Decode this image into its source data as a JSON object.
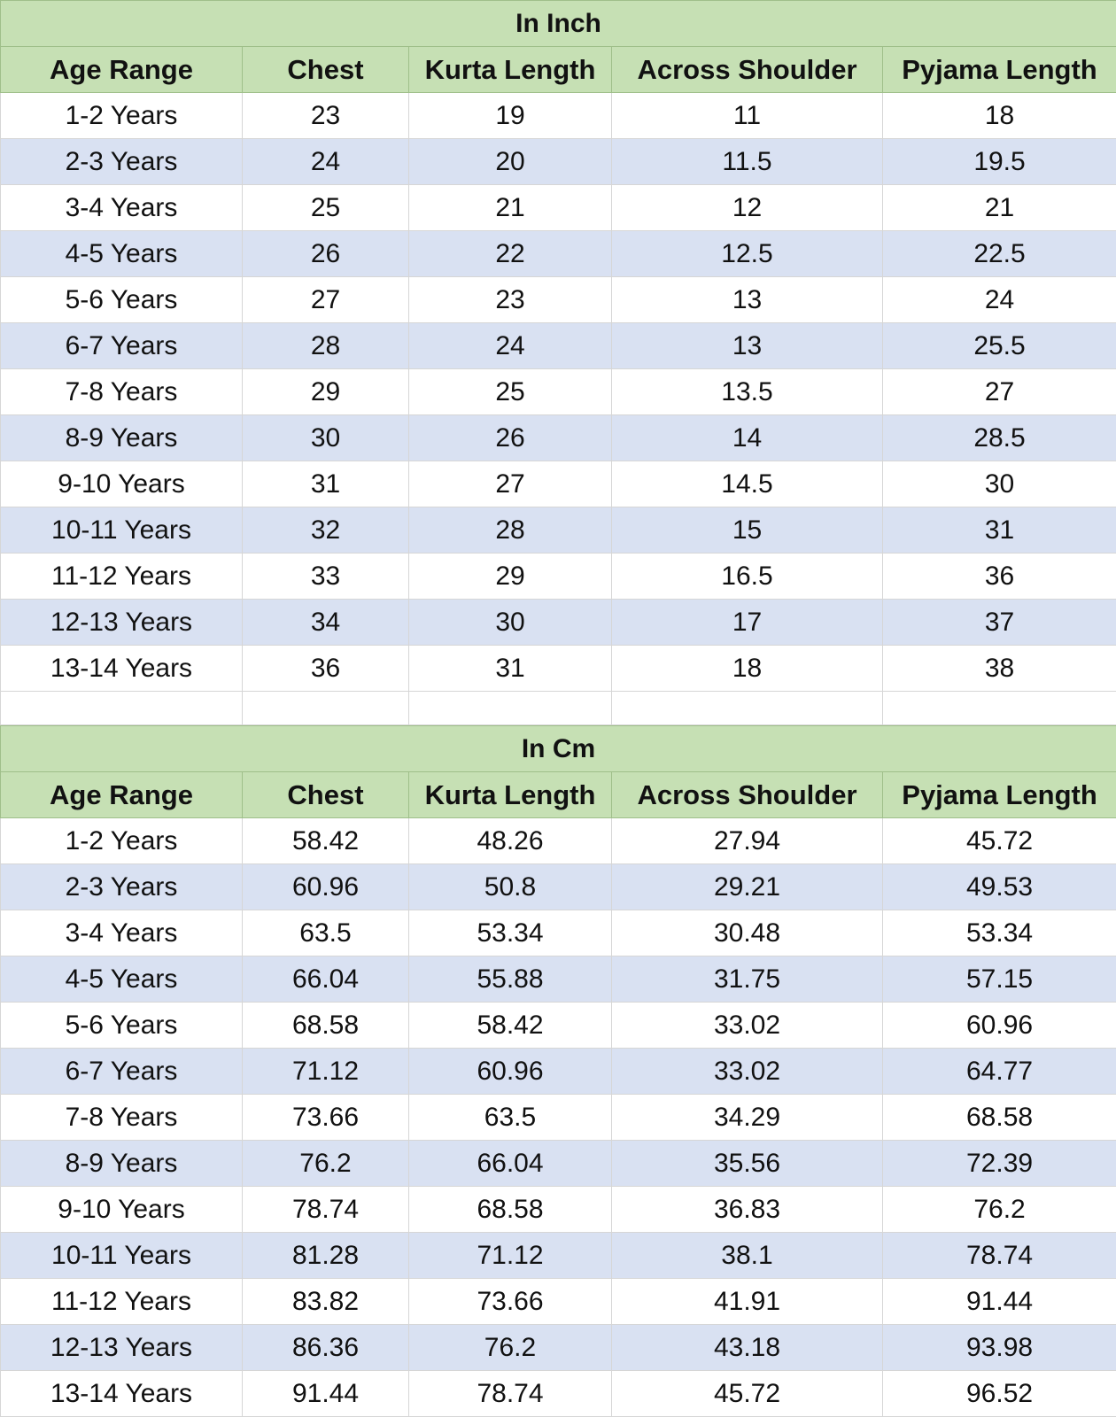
{
  "tables": [
    {
      "title": "In Inch",
      "columns": [
        "Age Range",
        "Chest",
        "Kurta Length",
        "Across Shoulder",
        "Pyjama Length"
      ],
      "rows": [
        [
          "1-2 Years",
          23,
          19,
          11,
          18
        ],
        [
          "2-3 Years",
          24,
          20,
          11.5,
          19.5
        ],
        [
          "3-4 Years",
          25,
          21,
          12,
          21
        ],
        [
          "4-5 Years",
          26,
          22,
          12.5,
          22.5
        ],
        [
          "5-6 Years",
          27,
          23,
          13,
          24
        ],
        [
          "6-7 Years",
          28,
          24,
          13,
          25.5
        ],
        [
          "7-8 Years",
          29,
          25,
          13.5,
          27
        ],
        [
          "8-9 Years",
          30,
          26,
          14,
          28.5
        ],
        [
          "9-10 Years",
          31,
          27,
          14.5,
          30
        ],
        [
          "10-11 Years",
          32,
          28,
          15,
          31
        ],
        [
          "11-12 Years",
          33,
          29,
          16.5,
          36
        ],
        [
          "12-13 Years",
          34,
          30,
          17,
          37
        ],
        [
          "13-14 Years",
          36,
          31,
          18,
          38
        ]
      ]
    },
    {
      "title": "In Cm",
      "columns": [
        "Age Range",
        "Chest",
        "Kurta Length",
        "Across Shoulder",
        "Pyjama Length"
      ],
      "rows": [
        [
          "1-2 Years",
          58.42,
          48.26,
          27.94,
          45.72
        ],
        [
          "2-3 Years",
          60.96,
          50.8,
          29.21,
          49.53
        ],
        [
          "3-4 Years",
          63.5,
          53.34,
          30.48,
          53.34
        ],
        [
          "4-5 Years",
          66.04,
          55.88,
          31.75,
          57.15
        ],
        [
          "5-6 Years",
          68.58,
          58.42,
          33.02,
          60.96
        ],
        [
          "6-7 Years",
          71.12,
          60.96,
          33.02,
          64.77
        ],
        [
          "7-8 Years",
          73.66,
          63.5,
          34.29,
          68.58
        ],
        [
          "8-9 Years",
          76.2,
          66.04,
          35.56,
          72.39
        ],
        [
          "9-10 Years",
          78.74,
          68.58,
          36.83,
          76.2
        ],
        [
          "10-11 Years",
          81.28,
          71.12,
          38.1,
          78.74
        ],
        [
          "11-12 Years",
          83.82,
          73.66,
          41.91,
          91.44
        ],
        [
          "12-13 Years",
          86.36,
          76.2,
          43.18,
          93.98
        ],
        [
          "13-14 Years",
          91.44,
          78.74,
          45.72,
          96.52
        ]
      ]
    }
  ]
}
